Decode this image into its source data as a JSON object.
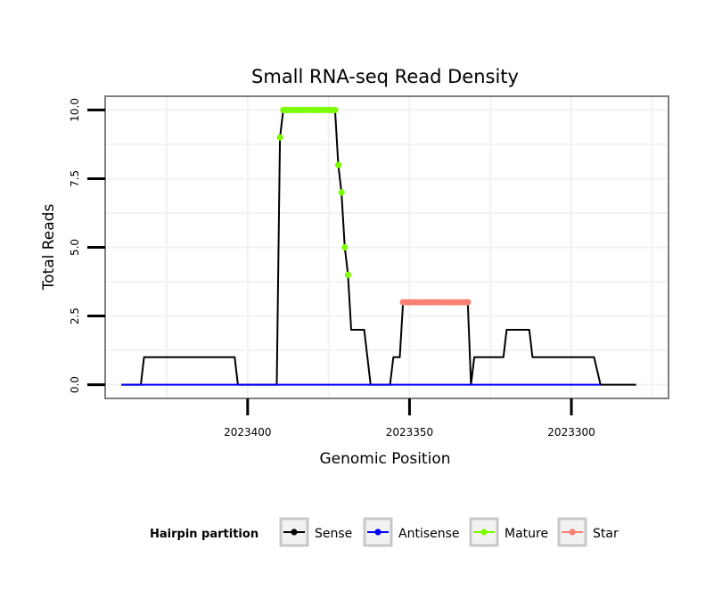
{
  "chart_data": {
    "type": "line",
    "title": "Small RNA-seq Read Density",
    "xlabel": "Genomic Position",
    "ylabel": "Total Reads",
    "xlim": [
      2023444,
      2023270
    ],
    "ylim": [
      -0.5,
      10.5
    ],
    "x_ticks": [
      2023400,
      2023350,
      2023300
    ],
    "x_tick_labels": [
      "2023400",
      "2023350",
      "2023300"
    ],
    "y_ticks": [
      0,
      2.5,
      5,
      7.5,
      10
    ],
    "y_tick_labels": [
      "0.0",
      "2.5",
      "5.0",
      "7.5",
      "10.0"
    ],
    "grid": true,
    "legend": {
      "title": "Hairpin partition",
      "position": "bottom",
      "entries": [
        {
          "label": "Sense",
          "color": "#000000"
        },
        {
          "label": "Antisense",
          "color": "#0000ff"
        },
        {
          "label": "Mature",
          "color": "#7cfc00"
        },
        {
          "label": "Star",
          "color": "#fa8072"
        }
      ]
    },
    "series": [
      {
        "name": "Sense",
        "color": "#000000",
        "points": [
          [
            2023439,
            0
          ],
          [
            2023433,
            0
          ],
          [
            2023432,
            1
          ],
          [
            2023404,
            1
          ],
          [
            2023403,
            0
          ],
          [
            2023391,
            0
          ],
          [
            2023390,
            9
          ],
          [
            2023389,
            10
          ],
          [
            2023373,
            10
          ],
          [
            2023372,
            8
          ],
          [
            2023371,
            7
          ],
          [
            2023370,
            5
          ],
          [
            2023369,
            4
          ],
          [
            2023368,
            2
          ],
          [
            2023364,
            2
          ],
          [
            2023362,
            0
          ],
          [
            2023356,
            0
          ],
          [
            2023355,
            1
          ],
          [
            2023353,
            1
          ],
          [
            2023352,
            3
          ],
          [
            2023332,
            3
          ],
          [
            2023331,
            0
          ],
          [
            2023330,
            1
          ],
          [
            2023321,
            1
          ],
          [
            2023320,
            2
          ],
          [
            2023313,
            2
          ],
          [
            2023312,
            1
          ],
          [
            2023293,
            1
          ],
          [
            2023291,
            0
          ],
          [
            2023280,
            0
          ]
        ]
      },
      {
        "name": "Antisense",
        "color": "#0000ff",
        "points": [
          [
            2023439,
            0
          ],
          [
            2023291,
            0
          ]
        ]
      },
      {
        "name": "Mature",
        "color": "#7cfc00",
        "points": [
          [
            2023390,
            9
          ],
          [
            2023389,
            10
          ],
          [
            2023388,
            10
          ],
          [
            2023387,
            10
          ],
          [
            2023386,
            10
          ],
          [
            2023385,
            10
          ],
          [
            2023384,
            10
          ],
          [
            2023383,
            10
          ],
          [
            2023382,
            10
          ],
          [
            2023381,
            10
          ],
          [
            2023380,
            10
          ],
          [
            2023379,
            10
          ],
          [
            2023378,
            10
          ],
          [
            2023377,
            10
          ],
          [
            2023376,
            10
          ],
          [
            2023375,
            10
          ],
          [
            2023374,
            10
          ],
          [
            2023373,
            10
          ],
          [
            2023372,
            8
          ],
          [
            2023371,
            7
          ],
          [
            2023370,
            5
          ],
          [
            2023369,
            4
          ]
        ]
      },
      {
        "name": "Star",
        "color": "#fa8072",
        "points": [
          [
            2023352,
            3
          ],
          [
            2023351,
            3
          ],
          [
            2023350,
            3
          ],
          [
            2023349,
            3
          ],
          [
            2023348,
            3
          ],
          [
            2023347,
            3
          ],
          [
            2023346,
            3
          ],
          [
            2023345,
            3
          ],
          [
            2023344,
            3
          ],
          [
            2023343,
            3
          ],
          [
            2023342,
            3
          ],
          [
            2023341,
            3
          ],
          [
            2023340,
            3
          ],
          [
            2023339,
            3
          ],
          [
            2023338,
            3
          ],
          [
            2023337,
            3
          ],
          [
            2023336,
            3
          ],
          [
            2023335,
            3
          ],
          [
            2023334,
            3
          ],
          [
            2023333,
            3
          ],
          [
            2023332,
            3
          ]
        ]
      }
    ]
  }
}
